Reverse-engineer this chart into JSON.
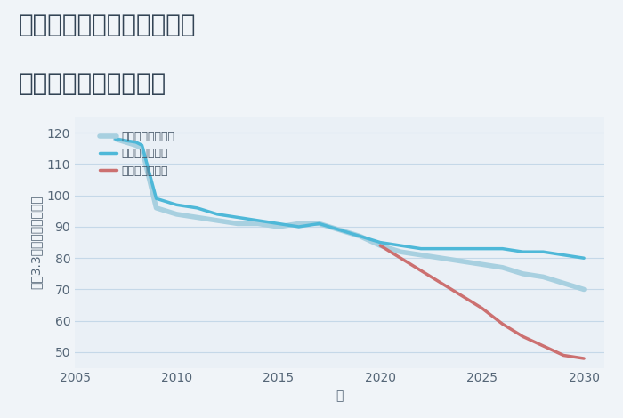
{
  "title_line1": "大阪府枚方市出屋敷西町の",
  "title_line2": "中古戸建ての価格推移",
  "xlabel": "年",
  "ylabel": "坪（3.3㎡）単価（万円）",
  "background_color": "#f0f4f8",
  "plot_bg_color": "#eaf0f6",
  "grid_color": "#c5d8e8",
  "ylim": [
    45,
    125
  ],
  "xlim": [
    2005,
    2031
  ],
  "yticks": [
    50,
    60,
    70,
    80,
    90,
    100,
    110,
    120
  ],
  "xticks": [
    2005,
    2010,
    2015,
    2020,
    2025,
    2030
  ],
  "good_scenario": {
    "label": "グッドシナリオ",
    "color": "#4eb8d8",
    "linewidth": 2.5,
    "x": [
      2007,
      2008,
      2008.3,
      2009,
      2010,
      2011,
      2012,
      2013,
      2014,
      2015,
      2016,
      2017,
      2018,
      2019,
      2020,
      2021,
      2022,
      2023,
      2024,
      2025,
      2026,
      2027,
      2028,
      2029,
      2030
    ],
    "y": [
      118,
      117,
      116,
      99,
      97,
      96,
      94,
      93,
      92,
      91,
      90,
      91,
      89,
      87,
      85,
      84,
      83,
      83,
      83,
      83,
      83,
      82,
      82,
      81,
      80
    ]
  },
  "bad_scenario": {
    "label": "バッドシナリオ",
    "color": "#cc7070",
    "linewidth": 2.5,
    "x": [
      2020,
      2021,
      2022,
      2023,
      2024,
      2025,
      2026,
      2027,
      2028,
      2029,
      2030
    ],
    "y": [
      84,
      80,
      76,
      72,
      68,
      64,
      59,
      55,
      52,
      49,
      48
    ]
  },
  "normal_scenario": {
    "label": "ノーマルシナリオ",
    "color": "#a8d0e0",
    "linewidth": 4.0,
    "x": [
      2007,
      2008,
      2008.3,
      2009,
      2010,
      2011,
      2012,
      2013,
      2014,
      2015,
      2016,
      2017,
      2018,
      2019,
      2020,
      2021,
      2022,
      2023,
      2024,
      2025,
      2026,
      2027,
      2028,
      2029,
      2030
    ],
    "y": [
      118,
      116,
      115,
      96,
      94,
      93,
      92,
      91,
      91,
      90,
      91,
      91,
      89,
      87,
      84,
      82,
      81,
      80,
      79,
      78,
      77,
      75,
      74,
      72,
      70
    ]
  },
  "legend_fontsize": 9,
  "title_fontsize": 20,
  "axis_label_fontsize": 10,
  "tick_fontsize": 10
}
